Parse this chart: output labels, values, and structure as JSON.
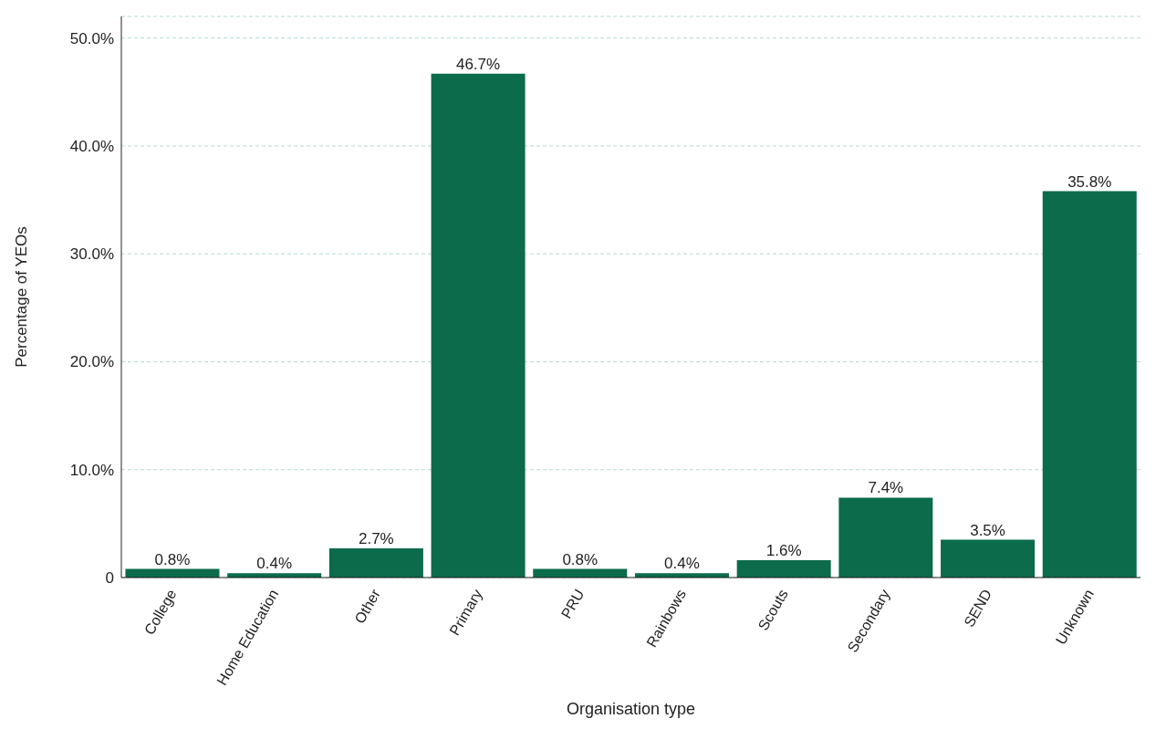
{
  "chart_data": {
    "type": "bar",
    "xlabel": "Organisation type",
    "ylabel": "Percentage of YEOs",
    "categories": [
      "College",
      "Home Education",
      "Other",
      "Primary",
      "PRU",
      "Rainbows",
      "Scouts",
      "Secondary",
      "SEND",
      "Unknown"
    ],
    "values": [
      0.8,
      0.4,
      2.7,
      46.7,
      0.8,
      0.4,
      1.6,
      7.4,
      3.5,
      35.8
    ],
    "value_labels": [
      "0.8%",
      "0.4%",
      "2.7%",
      "46.7%",
      "0.8%",
      "0.4%",
      "1.6%",
      "7.4%",
      "3.5%",
      "35.8%"
    ],
    "color": "#0b6b4b",
    "ylim": [
      0,
      52
    ],
    "yticks": [
      0,
      {
        "value": 10,
        "label": "10.0%"
      },
      {
        "value": 20,
        "label": "20.0%"
      },
      {
        "value": 30,
        "label": "30.0%"
      },
      {
        "value": 40,
        "label": "40.0%"
      },
      {
        "value": 50,
        "label": "50.0%"
      }
    ],
    "grid": "y"
  }
}
